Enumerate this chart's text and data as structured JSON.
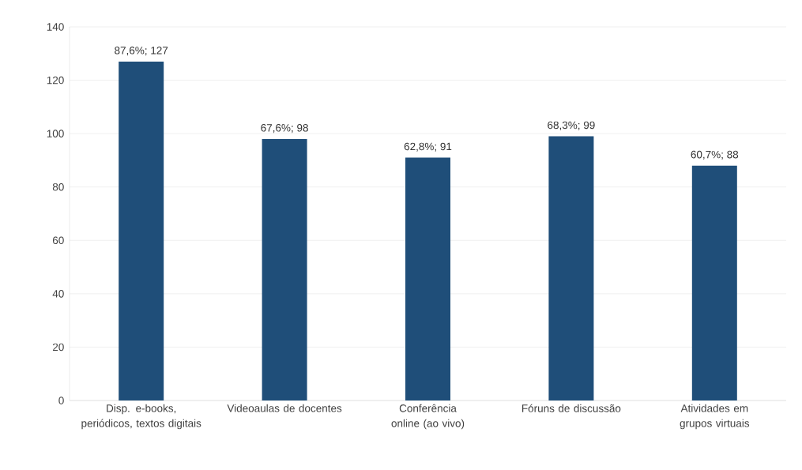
{
  "chart_data": {
    "type": "bar",
    "categories": [
      "Disp. e-books, periódicos, textos digitais",
      "Videoaulas de docentes",
      "Conferência online (ao vivo)",
      "Fóruns de discussão",
      "Atividades em grupos virtuais"
    ],
    "values": [
      127,
      98,
      91,
      99,
      88
    ],
    "value_labels": [
      "87,6%; 127",
      "67,6%; 98",
      "62,8%; 91",
      "68,3%; 99",
      "60,7%; 88"
    ],
    "color": "#1f4e79",
    "ylim": [
      0,
      140
    ],
    "yticks": [
      0,
      20,
      40,
      60,
      80,
      100,
      120,
      140
    ],
    "grid": "y"
  }
}
